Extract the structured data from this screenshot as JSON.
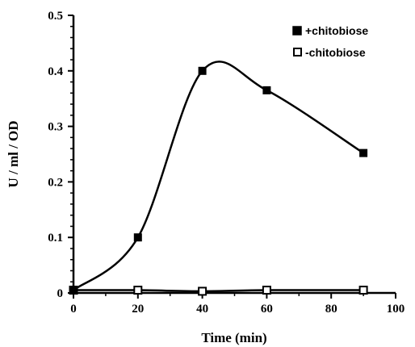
{
  "chart_data": {
    "type": "line",
    "xlabel": "Time (min)",
    "ylabel": "U / ml / OD",
    "xlim": [
      0,
      100
    ],
    "ylim": [
      0,
      0.5
    ],
    "x_ticks": [
      "0",
      "20",
      "40",
      "60",
      "80",
      "100"
    ],
    "y_ticks": [
      "0",
      "0.1",
      "0.2",
      "0.3",
      "0.4",
      "0.5"
    ],
    "grid": false,
    "legend_position": "top-right",
    "series": [
      {
        "name": "+chitobiose",
        "marker": "filled-square",
        "x": [
          0,
          20,
          40,
          60,
          90
        ],
        "y": [
          0.005,
          0.1,
          0.4,
          0.365,
          0.252
        ]
      },
      {
        "name": "-chitobiose",
        "marker": "open-square",
        "x": [
          0,
          20,
          40,
          60,
          90
        ],
        "y": [
          0.005,
          0.005,
          0.003,
          0.005,
          0.005
        ]
      }
    ]
  }
}
